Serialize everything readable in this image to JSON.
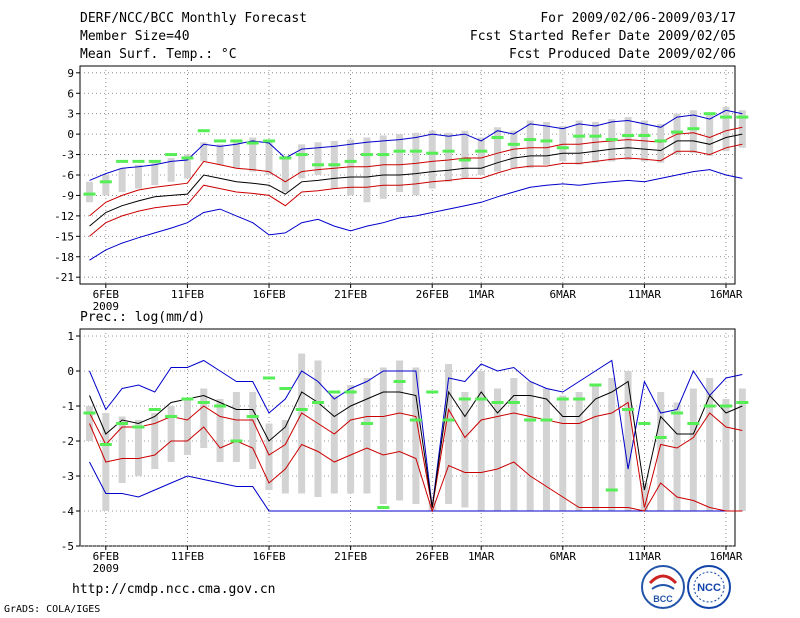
{
  "header": {
    "title": "DERF/NCC/BCC Monthly Forecast",
    "member_size": "Member Size=40",
    "variable": "Mean Surf. Temp.: °C",
    "period": "For 2009/02/06-2009/03/17",
    "started": "Fcst Started Refer Date 2009/02/05",
    "produced": "Fcst Produced Date 2009/02/06"
  },
  "footer": {
    "url": "http://cmdp.ncc.cma.gov.cn",
    "credit": "GrADS: COLA/IGES",
    "logo_left": "BCC",
    "logo_right": "NCC"
  },
  "colors": {
    "envelope": "#0000cc",
    "spread": "#cc0000",
    "mean": "#000000",
    "box": "#d3d3d3",
    "obs_mark": "#55ee55"
  },
  "chart_data": [
    {
      "type": "line",
      "title": "Mean Surf. Temp.: °C",
      "xlabel": "",
      "ylabel": "°C",
      "x_tick_labels": [
        "6FEB",
        "11FEB",
        "16FEB",
        "21FEB",
        "26FEB",
        "1MAR",
        "6MAR",
        "11MAR",
        "16MAR"
      ],
      "x_tick_days": [
        1,
        6,
        11,
        16,
        21,
        24,
        29,
        34,
        39
      ],
      "year_label": "2009",
      "ylim": [
        -22,
        10
      ],
      "y_ticks": [
        -21,
        -18,
        -15,
        -12,
        -9,
        -6,
        -3,
        0,
        3,
        6,
        9
      ],
      "days": 40,
      "series": [
        {
          "name": "max",
          "values": [
            -6.8,
            -5.8,
            -5,
            -4.8,
            -4.5,
            -4,
            -3.8,
            -1.5,
            -1.8,
            -1.5,
            -1,
            -1.3,
            -3.5,
            -2.2,
            -2,
            -1.8,
            -1.5,
            -1.2,
            -1,
            -0.8,
            -0.5,
            0,
            -0.3,
            0,
            -1,
            0.5,
            0,
            1.5,
            1.2,
            0.8,
            1.5,
            1.2,
            1.8,
            2,
            1.5,
            1,
            2.5,
            2.8,
            2.2,
            3.5,
            3
          ]
        },
        {
          "name": "upper",
          "values": [
            -12,
            -10,
            -9,
            -8.2,
            -7.8,
            -7.5,
            -7.2,
            -4,
            -4.5,
            -5,
            -5.2,
            -5.5,
            -7,
            -5.5,
            -5.2,
            -5,
            -4.8,
            -4.8,
            -4.5,
            -4.5,
            -4.3,
            -4,
            -3.8,
            -3.5,
            -3.5,
            -2.8,
            -2.2,
            -2,
            -2,
            -1.5,
            -1.5,
            -1.2,
            -1,
            -0.8,
            -1,
            -1.2,
            0,
            0.2,
            -0.5,
            0.5,
            1
          ]
        },
        {
          "name": "mean",
          "values": [
            -13.5,
            -11.5,
            -10.5,
            -9.8,
            -9.2,
            -9,
            -8.8,
            -6,
            -6.5,
            -7,
            -7.2,
            -7.5,
            -8.8,
            -7,
            -6.8,
            -6.5,
            -6.3,
            -6.3,
            -6,
            -6,
            -5.8,
            -5.5,
            -5.3,
            -5,
            -5,
            -4.2,
            -3.5,
            -3.2,
            -3.2,
            -2.8,
            -2.8,
            -2.5,
            -2.2,
            -2,
            -2.2,
            -2.4,
            -1,
            -1,
            -1.5,
            -0.5,
            0
          ]
        },
        {
          "name": "lower",
          "values": [
            -15,
            -13,
            -12,
            -11.3,
            -10.8,
            -10.5,
            -10.3,
            -7.5,
            -8,
            -8.5,
            -8.7,
            -9,
            -10.5,
            -8.5,
            -8.3,
            -8,
            -7.8,
            -7.8,
            -7.5,
            -7.5,
            -7.3,
            -7,
            -6.8,
            -6.5,
            -6.5,
            -5.7,
            -5,
            -4.7,
            -4.7,
            -4.3,
            -4.3,
            -4,
            -3.7,
            -3.5,
            -3.7,
            -3.9,
            -2.5,
            -2.5,
            -3,
            -2,
            -1.5
          ]
        },
        {
          "name": "min",
          "values": [
            -18.5,
            -17,
            -16,
            -15.2,
            -14.5,
            -13.8,
            -13,
            -11.5,
            -11,
            -12,
            -13,
            -14.8,
            -14.5,
            -13,
            -12.5,
            -13.5,
            -14.2,
            -13.5,
            -13,
            -12.3,
            -12,
            -11.5,
            -11,
            -10.5,
            -10,
            -9.2,
            -8.5,
            -7.8,
            -7.5,
            -7.3,
            -7.5,
            -7.2,
            -7,
            -6.8,
            -7,
            -6.5,
            -6,
            -5.5,
            -5.2,
            -6,
            -6.5
          ]
        },
        {
          "name": "box_top",
          "values": [
            -7,
            -6,
            -5,
            -4.5,
            -4,
            -3.5,
            -3,
            -1.2,
            -1.5,
            -1.2,
            -0.5,
            -1,
            -3.2,
            -1.5,
            -1.2,
            -1,
            -0.8,
            -0.5,
            -0.2,
            0,
            0.2,
            0.5,
            0.2,
            0.5,
            -0.5,
            1,
            0.5,
            2,
            1.8,
            1.2,
            2,
            1.8,
            2.2,
            2.5,
            2,
            1.5,
            3,
            3.5,
            2.8,
            4,
            3.5
          ]
        },
        {
          "name": "box_bottom",
          "values": [
            -10,
            -9,
            -8.5,
            -8,
            -7.5,
            -7,
            -6.5,
            -4,
            -4.5,
            -5,
            -5.5,
            -6,
            -8.5,
            -6.5,
            -6,
            -8,
            -9,
            -10,
            -9.5,
            -8.5,
            -9,
            -8,
            -7,
            -6.5,
            -6,
            -5.5,
            -5,
            -5,
            -4.5,
            -4,
            -4.5,
            -4.2,
            -4,
            -3.8,
            -4,
            -4.2,
            -3,
            -2.8,
            -3.2,
            -2.5,
            -2
          ]
        },
        {
          "name": "observed",
          "values": [
            -8.8,
            -7,
            -4,
            -4,
            -4,
            -3,
            -3.5,
            0.5,
            -1,
            -1,
            -1.3,
            -1,
            -3.5,
            -3,
            -4.5,
            -4.5,
            -4,
            -3,
            -3,
            -2.5,
            -2.5,
            -2.8,
            -2.5,
            -3.8,
            -2.5,
            -0.5,
            -1.5,
            -0.8,
            -1,
            -2,
            -0.3,
            -0.3,
            -0.8,
            -0.2,
            -0.2,
            -1,
            0.3,
            0.8,
            3,
            2.5,
            2.5
          ]
        }
      ]
    },
    {
      "type": "line",
      "title": "Prec.: log(mm/d)",
      "xlabel": "",
      "ylabel": "log(mm/d)",
      "x_tick_labels": [
        "6FEB",
        "11FEB",
        "16FEB",
        "21FEB",
        "26FEB",
        "1MAR",
        "6MAR",
        "11MAR",
        "16MAR"
      ],
      "x_tick_days": [
        1,
        6,
        11,
        16,
        21,
        24,
        29,
        34,
        39
      ],
      "year_label": "2009",
      "ylim": [
        -5,
        1.2
      ],
      "y_ticks": [
        -5,
        -4,
        -3,
        -2,
        -1,
        0,
        1
      ],
      "days": 40,
      "series": [
        {
          "name": "max",
          "values": [
            0,
            -1.1,
            -0.5,
            -0.4,
            -0.6,
            0.1,
            0.1,
            0.3,
            0,
            -0.3,
            -0.3,
            -1.2,
            -0.8,
            0,
            -0.3,
            -0.8,
            -0.5,
            -0.3,
            0,
            0,
            0,
            -3.9,
            -0.2,
            -0.3,
            0.2,
            0,
            0.1,
            -0.3,
            -0.5,
            -0.6,
            -0.3,
            0,
            0.3,
            -2.8,
            -0.3,
            -1.2,
            -1.1,
            0,
            -0.7,
            -0.2,
            -0.1
          ]
        },
        {
          "name": "mean",
          "values": [
            -0.7,
            -1.8,
            -1.4,
            -1.5,
            -1.3,
            -0.9,
            -0.8,
            -0.7,
            -0.9,
            -1.1,
            -1.1,
            -2,
            -1.6,
            -0.6,
            -0.9,
            -1.3,
            -1,
            -0.8,
            -0.6,
            -0.6,
            -0.7,
            -3.9,
            -0.6,
            -1.3,
            -0.6,
            -1.2,
            -0.7,
            -0.7,
            -0.8,
            -1.3,
            -1.3,
            -0.8,
            -0.6,
            -0.3,
            -3.4,
            -1.3,
            -1.8,
            -1.8,
            -0.7,
            -1.2,
            -1
          ]
        },
        {
          "name": "upper",
          "values": [
            -1.2,
            -2.1,
            -1.6,
            -1.6,
            -1.5,
            -1.3,
            -1.4,
            -1,
            -1.3,
            -1.4,
            -1.4,
            -2.4,
            -2.1,
            -1.2,
            -1.5,
            -1.8,
            -1.4,
            -1.3,
            -1.3,
            -1.2,
            -1.3,
            -3.9,
            -1.1,
            -1.9,
            -1.4,
            -1.3,
            -1.2,
            -1.3,
            -1.4,
            -1.5,
            -1.5,
            -1.3,
            -1.2,
            -0.9,
            -3.9,
            -2.1,
            -2.2,
            -1.9,
            -1.2,
            -1.6,
            -1.7
          ]
        },
        {
          "name": "lower",
          "values": [
            -1.5,
            -2.6,
            -2.5,
            -2.5,
            -2.4,
            -2,
            -2,
            -1.6,
            -2.2,
            -2,
            -2.2,
            -3.2,
            -2.8,
            -2.1,
            -2.3,
            -2.6,
            -2.4,
            -2.2,
            -2.4,
            -2.3,
            -2.5,
            -4,
            -2.7,
            -2.9,
            -2.9,
            -2.8,
            -2.6,
            -3,
            -3.3,
            -3.6,
            -3.9,
            -3.9,
            -3.9,
            -3.9,
            -4,
            -3.2,
            -3.6,
            -3.7,
            -3.9,
            -4,
            -4
          ]
        },
        {
          "name": "min",
          "values": [
            -2.6,
            -3.5,
            -3.5,
            -3.6,
            -3.4,
            -3.2,
            -3,
            -3.1,
            -3.2,
            -3.3,
            -3.3,
            -4,
            -4,
            -4,
            -4,
            -4,
            -4,
            -4,
            -4,
            -4,
            -4,
            -4,
            -4,
            -4,
            -4,
            -4,
            -4,
            -4,
            -4,
            -4,
            -4,
            -4,
            -4,
            -4,
            -4,
            -4,
            -4,
            -4,
            -4,
            -4,
            -4
          ]
        },
        {
          "name": "box_top",
          "values": [
            -1,
            -1.2,
            -1.3,
            -1.4,
            -1.2,
            -1,
            -0.8,
            -0.5,
            -0.8,
            -0.6,
            -0.6,
            -1.5,
            -1.4,
            0.5,
            0.3,
            -0.7,
            -0.4,
            -0.2,
            0.1,
            0.3,
            0.1,
            -3.7,
            0.2,
            -0.6,
            0,
            -0.5,
            -0.2,
            -0.3,
            -0.5,
            -0.7,
            -0.6,
            -0.4,
            -0.2,
            0,
            -3.2,
            -0.6,
            -0.9,
            -0.5,
            -0.2,
            -0.8,
            -0.5
          ]
        },
        {
          "name": "box_bottom",
          "values": [
            -2,
            -4,
            -3.2,
            -3,
            -2.8,
            -2.6,
            -2.4,
            -2.2,
            -2.6,
            -2.6,
            -2.8,
            -3.4,
            -3.5,
            -3.5,
            -3.6,
            -3.5,
            -3.5,
            -3.5,
            -3.8,
            -3.7,
            -3.8,
            -4,
            -3.8,
            -3.9,
            -4,
            -4,
            -4,
            -4,
            -4,
            -4,
            -4,
            -4,
            -4,
            -4,
            -4,
            -4,
            -4,
            -4,
            -4,
            -4,
            -4
          ]
        },
        {
          "name": "observed",
          "values": [
            -1.2,
            -2.1,
            -1.5,
            -1.6,
            -1.1,
            -1.3,
            -0.8,
            -0.9,
            -1,
            -2,
            -1.3,
            -0.2,
            -0.5,
            -1.1,
            -0.9,
            -0.6,
            -0.6,
            -1.5,
            -3.9,
            -0.3,
            -1.4,
            -0.6,
            -1.4,
            -0.8,
            -0.8,
            -0.9,
            -0.9,
            -1.4,
            -1.4,
            -0.8,
            -0.8,
            -0.4,
            -3.4,
            -1.1,
            -1.5,
            -1.9,
            -1.2,
            -1.5,
            -1,
            -1,
            -0.9
          ]
        }
      ]
    }
  ]
}
